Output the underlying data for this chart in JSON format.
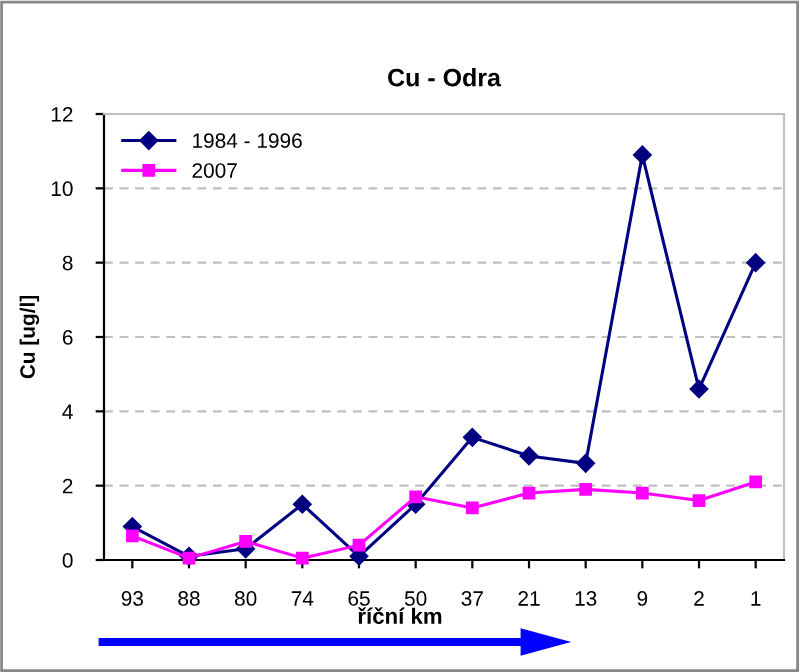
{
  "chart_data": {
    "type": "line",
    "title": "Cu - Odra",
    "xlabel": "říční km",
    "ylabel": "Cu [ug/l]",
    "categories": [
      "93",
      "88",
      "80",
      "74",
      "65",
      "50",
      "37",
      "21",
      "13",
      "9",
      "2",
      "1"
    ],
    "series": [
      {
        "name": "1984 - 1996",
        "color": "#000080",
        "marker": "diamond",
        "values": [
          0.9,
          0.1,
          0.3,
          1.5,
          0.1,
          1.5,
          3.3,
          2.8,
          2.6,
          10.9,
          4.6,
          8.0
        ]
      },
      {
        "name": "2007",
        "color": "#ff00ff",
        "marker": "square",
        "values": [
          0.65,
          0.05,
          0.5,
          0.05,
          0.4,
          1.7,
          1.4,
          1.8,
          1.9,
          1.8,
          1.6,
          2.1
        ]
      }
    ],
    "ylim": [
      0,
      12
    ],
    "yticks": [
      0,
      2,
      4,
      6,
      8,
      10,
      12
    ],
    "grid": "y",
    "legend": "top left",
    "line_style": "solid"
  }
}
